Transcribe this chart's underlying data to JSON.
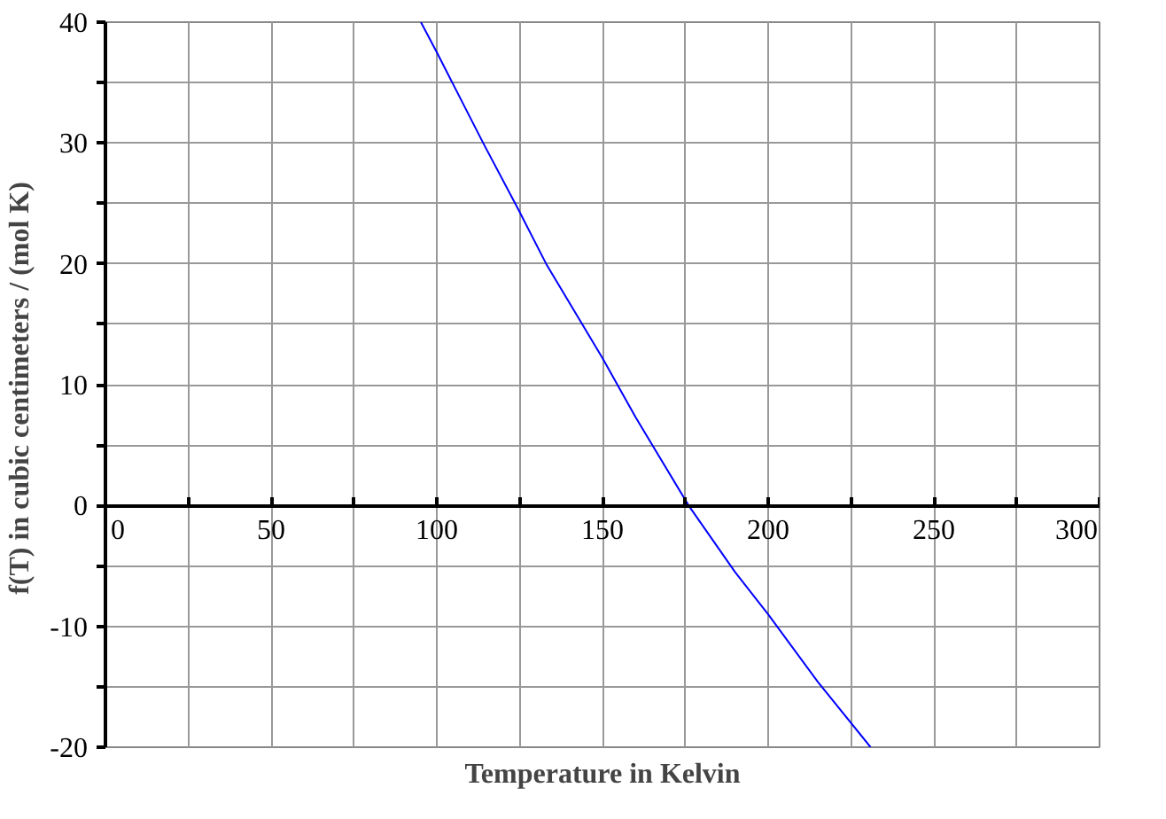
{
  "chart_data": {
    "type": "line",
    "xlabel": "Temperature in Kelvin",
    "ylabel": "f(T)  in cubic centimeters / (mol K)",
    "xlim": [
      0,
      300
    ],
    "ylim": [
      -20,
      40
    ],
    "xticks": [
      0,
      {
        "value": 25,
        "label": null
      },
      50,
      {
        "value": 75,
        "label": null
      },
      100,
      {
        "value": 125,
        "label": null
      },
      150,
      {
        "value": 175,
        "label": null
      },
      200,
      {
        "value": 225,
        "label": null
      },
      250,
      {
        "value": 275,
        "label": null
      },
      300
    ],
    "yticks": [
      -20,
      {
        "value": -15,
        "label": null
      },
      -10,
      {
        "value": -5,
        "label": null
      },
      0,
      {
        "value": 5,
        "label": null
      },
      10,
      {
        "value": 15,
        "label": null
      },
      20,
      {
        "value": 25,
        "label": null
      },
      30,
      {
        "value": 35,
        "label": null
      },
      40
    ],
    "grid": true,
    "marker": "none",
    "line_style": "solid",
    "series": [
      {
        "color": "#0000ff",
        "x": [
          95.2,
          100,
          114,
          124.6,
          133,
          150,
          160,
          176,
          190,
          200,
          215,
          230.9
        ],
        "values": [
          40,
          37.5,
          30,
          24.5,
          20,
          12.2,
          7.3,
          0,
          -5.5,
          -9,
          -14.6,
          -20
        ]
      }
    ]
  }
}
